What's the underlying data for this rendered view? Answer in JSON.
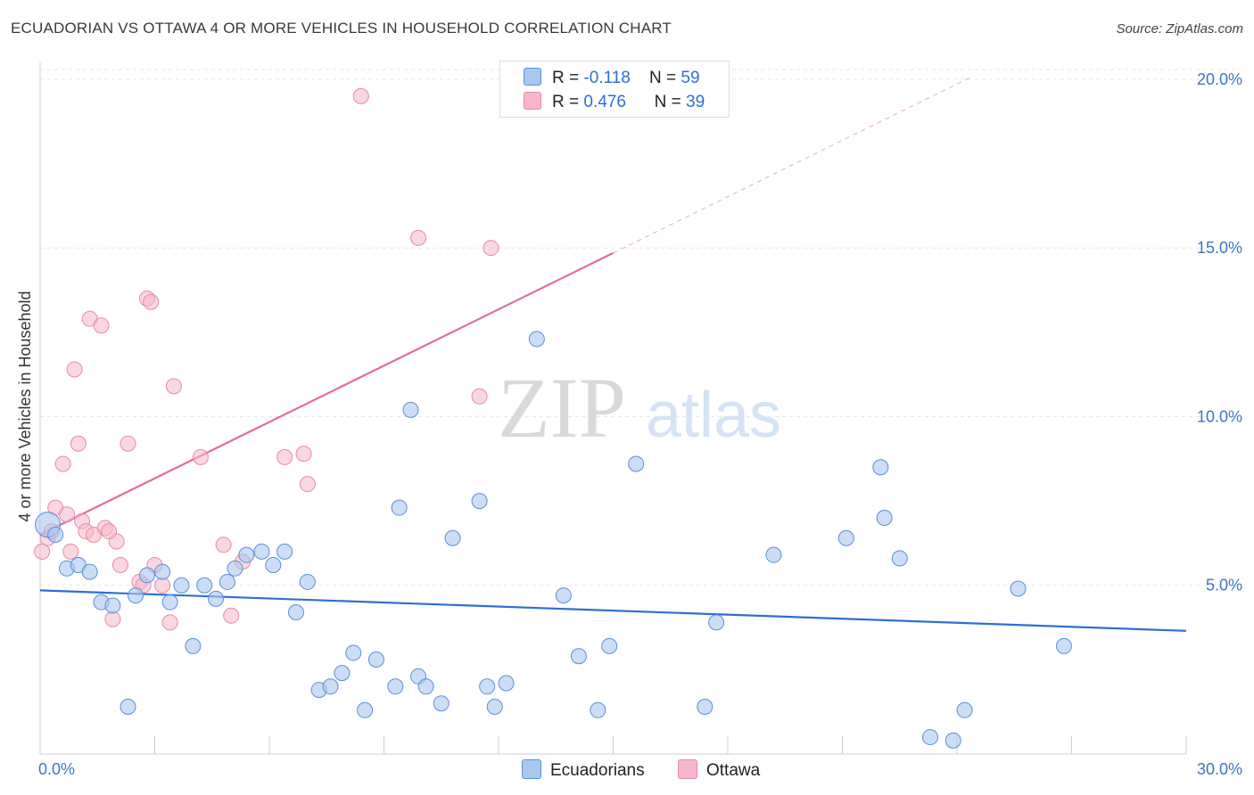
{
  "title": "ECUADORIAN VS OTTAWA 4 OR MORE VEHICLES IN HOUSEHOLD CORRELATION CHART",
  "source": "Source: ZipAtlas.com",
  "watermark": {
    "zip": "ZIP",
    "atlas": "atlas"
  },
  "legend": {
    "r_label": "R =",
    "n_label": "N =",
    "rows": [
      {
        "r": "-0.118",
        "n": "59",
        "color": "#a9c8f0"
      },
      {
        "r": "0.476",
        "n": "39",
        "color": "#f7b6c9"
      }
    ]
  },
  "series_legend": {
    "ecuadorians": "Ecuadorians",
    "ottawa": "Ottawa"
  },
  "colors": {
    "ecuadorians_fill": "#a9c8f0",
    "ecuadorians_stroke": "#5b8fd6",
    "ecuadorians_line": "#2e6fd1",
    "ottawa_fill": "#f7b6c9",
    "ottawa_stroke": "#e98aa8",
    "ottawa_line": "#e36d97",
    "tick_label": "#3b76c4"
  },
  "chart_data": {
    "type": "scatter",
    "title": "ECUADORIAN VS OTTAWA 4 OR MORE VEHICLES IN HOUSEHOLD CORRELATION CHART",
    "xlabel": "",
    "ylabel": "4 or more Vehicles in Household",
    "xlim": [
      0,
      30
    ],
    "ylim": [
      0,
      20.5
    ],
    "x_tick_labels": [
      "0.0%",
      "30.0%"
    ],
    "y_ticks": [
      5,
      10,
      15,
      20
    ],
    "y_tick_labels": [
      "5.0%",
      "10.0%",
      "15.0%",
      "20.0%"
    ],
    "grid": true,
    "legend_position": "top-center",
    "series": [
      {
        "name": "Ecuadorians",
        "trend": {
          "x0": 0,
          "y0": 4.85,
          "x1": 30,
          "y1": 3.65
        },
        "points": [
          [
            0.2,
            6.8
          ],
          [
            0.4,
            6.5
          ],
          [
            0.7,
            5.5
          ],
          [
            1.0,
            5.6
          ],
          [
            1.3,
            5.4
          ],
          [
            1.6,
            4.5
          ],
          [
            1.9,
            4.4
          ],
          [
            2.3,
            1.4
          ],
          [
            2.5,
            4.7
          ],
          [
            2.8,
            5.3
          ],
          [
            3.2,
            5.4
          ],
          [
            3.4,
            4.5
          ],
          [
            3.7,
            5.0
          ],
          [
            4.0,
            3.2
          ],
          [
            4.3,
            5.0
          ],
          [
            4.6,
            4.6
          ],
          [
            4.9,
            5.1
          ],
          [
            5.1,
            5.5
          ],
          [
            5.4,
            5.9
          ],
          [
            5.8,
            6.0
          ],
          [
            6.1,
            5.6
          ],
          [
            6.4,
            6.0
          ],
          [
            6.7,
            4.2
          ],
          [
            7.0,
            5.1
          ],
          [
            7.3,
            1.9
          ],
          [
            7.6,
            2.0
          ],
          [
            7.9,
            2.4
          ],
          [
            8.2,
            3.0
          ],
          [
            8.5,
            1.3
          ],
          [
            8.8,
            2.8
          ],
          [
            9.3,
            2.0
          ],
          [
            9.4,
            7.3
          ],
          [
            9.7,
            10.2
          ],
          [
            9.9,
            2.3
          ],
          [
            10.1,
            2.0
          ],
          [
            10.5,
            1.5
          ],
          [
            10.8,
            6.4
          ],
          [
            11.5,
            7.5
          ],
          [
            11.7,
            2.0
          ],
          [
            11.9,
            1.4
          ],
          [
            12.2,
            2.1
          ],
          [
            13.0,
            12.3
          ],
          [
            13.7,
            4.7
          ],
          [
            14.1,
            2.9
          ],
          [
            14.6,
            1.3
          ],
          [
            14.9,
            3.2
          ],
          [
            15.6,
            8.6
          ],
          [
            17.4,
            1.4
          ],
          [
            17.7,
            3.9
          ],
          [
            19.2,
            5.9
          ],
          [
            21.1,
            6.4
          ],
          [
            22.0,
            8.5
          ],
          [
            22.1,
            7.0
          ],
          [
            22.5,
            5.8
          ],
          [
            23.3,
            0.5
          ],
          [
            23.9,
            0.4
          ],
          [
            24.2,
            1.3
          ],
          [
            25.6,
            4.9
          ],
          [
            26.8,
            3.2
          ]
        ]
      },
      {
        "name": "Ottawa",
        "trend": {
          "x0": 0,
          "y0": 6.5,
          "x1": 15,
          "y1": 14.85,
          "dashed_to_x": 24.4
        },
        "points": [
          [
            0.05,
            6.0
          ],
          [
            0.2,
            6.4
          ],
          [
            0.4,
            7.3
          ],
          [
            0.6,
            8.6
          ],
          [
            0.7,
            7.1
          ],
          [
            0.8,
            6.0
          ],
          [
            0.9,
            11.4
          ],
          [
            1.0,
            9.2
          ],
          [
            1.1,
            6.9
          ],
          [
            1.2,
            6.6
          ],
          [
            1.3,
            12.9
          ],
          [
            1.4,
            6.5
          ],
          [
            1.6,
            12.7
          ],
          [
            1.7,
            6.7
          ],
          [
            1.9,
            4.0
          ],
          [
            2.0,
            6.3
          ],
          [
            2.1,
            5.6
          ],
          [
            2.3,
            9.2
          ],
          [
            2.6,
            5.1
          ],
          [
            2.7,
            5.0
          ],
          [
            2.8,
            13.5
          ],
          [
            2.9,
            13.4
          ],
          [
            3.0,
            5.6
          ],
          [
            3.2,
            5.0
          ],
          [
            3.4,
            3.9
          ],
          [
            3.5,
            10.9
          ],
          [
            4.2,
            8.8
          ],
          [
            4.8,
            6.2
          ],
          [
            5.0,
            4.1
          ],
          [
            5.3,
            5.7
          ],
          [
            6.4,
            8.8
          ],
          [
            6.9,
            8.9
          ],
          [
            7.0,
            8.0
          ],
          [
            8.4,
            19.5
          ],
          [
            9.9,
            15.3
          ],
          [
            11.5,
            10.6
          ],
          [
            11.8,
            15.0
          ],
          [
            0.3,
            6.6
          ],
          [
            1.8,
            6.6
          ]
        ]
      }
    ]
  }
}
